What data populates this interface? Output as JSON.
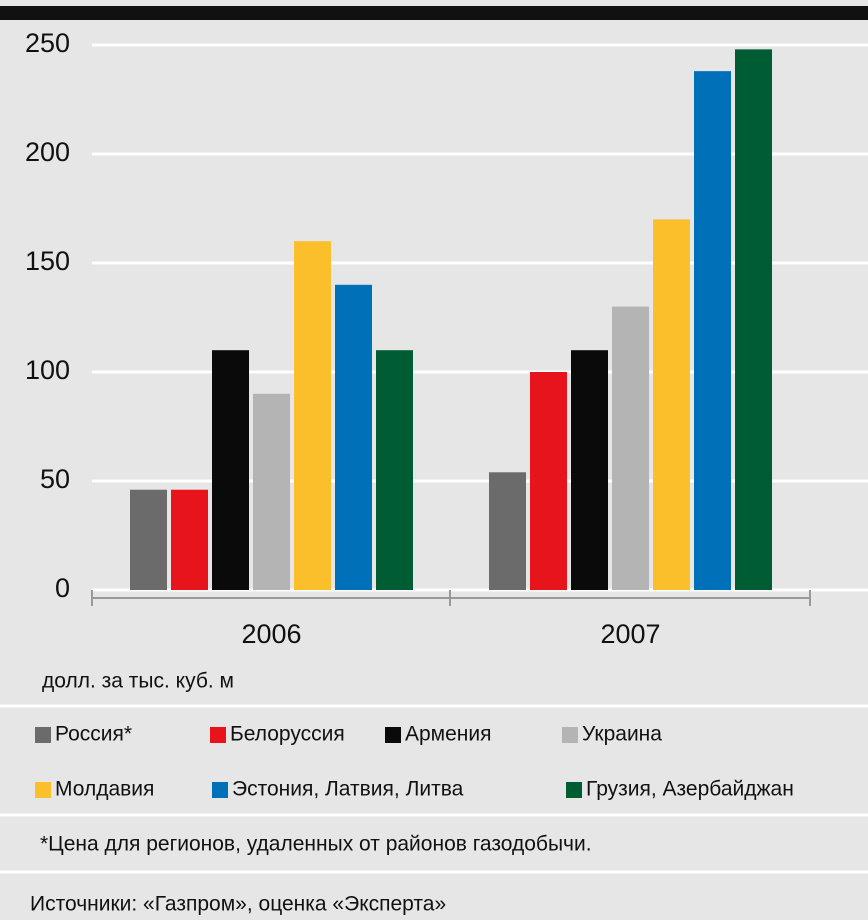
{
  "chart_data": {
    "type": "bar",
    "categories": [
      "2006",
      "2007"
    ],
    "series": [
      {
        "name": "Россия*",
        "color": "#6b6b6b",
        "values": [
          46,
          54
        ]
      },
      {
        "name": "Белоруссия",
        "color": "#e8141b",
        "values": [
          46,
          100
        ]
      },
      {
        "name": "Армения",
        "color": "#0a0a0a",
        "values": [
          110,
          110
        ]
      },
      {
        "name": "Украина",
        "color": "#b4b4b4",
        "values": [
          90,
          130
        ]
      },
      {
        "name": "Молдавия",
        "color": "#fbbf2b",
        "values": [
          160,
          170
        ]
      },
      {
        "name": "Эстония, Латвия, Литва",
        "color": "#0070b8",
        "values": [
          140,
          238
        ]
      },
      {
        "name": "Грузия, Азербайджан",
        "color": "#005c32",
        "values": [
          110,
          248
        ]
      }
    ],
    "ylim": [
      0,
      250
    ],
    "yticks": [
      0,
      50,
      100,
      150,
      200,
      250
    ],
    "grid": true,
    "y_label": "долл. за тыс. куб. м",
    "footnote": "*Цена для регионов, удаленных от районов газодобычи.",
    "source": "Источники: «Газпром», оценка «Эксперта»"
  }
}
